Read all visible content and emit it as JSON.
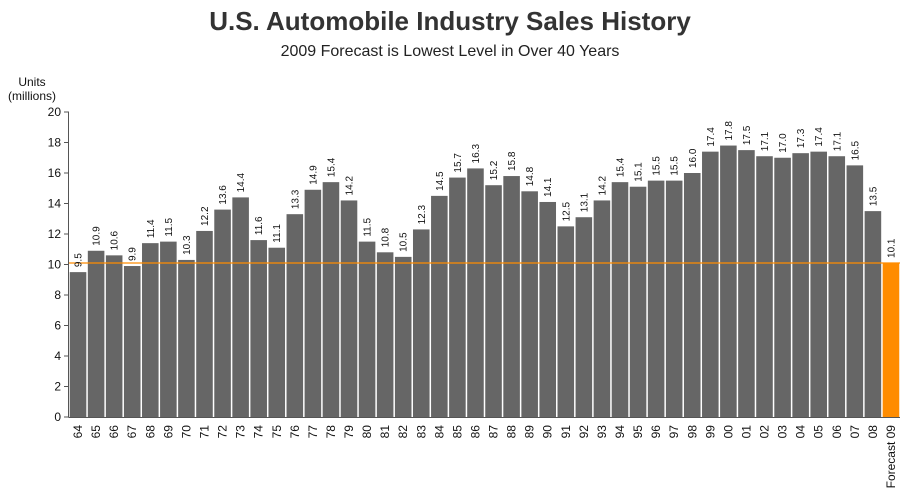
{
  "chart_data": {
    "type": "bar",
    "title": "U.S. Automobile Industry Sales History",
    "subtitle": "2009 Forecast is Lowest Level in Over 40 Years",
    "ylabel_line1": "Units",
    "ylabel_line2": "(millions)",
    "xlabel": "",
    "ylim": [
      0,
      20
    ],
    "yticks": [
      0,
      2,
      4,
      6,
      8,
      10,
      12,
      14,
      16,
      18,
      20
    ],
    "grid": false,
    "legend": "none",
    "reference_line": 10.1,
    "categories": [
      "64",
      "65",
      "66",
      "67",
      "68",
      "69",
      "70",
      "71",
      "72",
      "73",
      "74",
      "75",
      "76",
      "77",
      "78",
      "79",
      "80",
      "81",
      "82",
      "83",
      "84",
      "85",
      "86",
      "87",
      "88",
      "89",
      "90",
      "91",
      "92",
      "93",
      "94",
      "95",
      "96",
      "97",
      "98",
      "99",
      "00",
      "01",
      "02",
      "03",
      "04",
      "05",
      "06",
      "07",
      "08",
      "Forecast 09"
    ],
    "values": [
      9.5,
      10.9,
      10.6,
      9.9,
      11.4,
      11.5,
      10.3,
      12.2,
      13.6,
      14.4,
      11.6,
      11.1,
      13.3,
      14.9,
      15.4,
      14.2,
      11.5,
      10.8,
      10.5,
      12.3,
      14.5,
      15.7,
      16.3,
      15.2,
      15.8,
      14.8,
      14.1,
      12.5,
      13.1,
      14.2,
      15.4,
      15.1,
      15.5,
      15.5,
      16.0,
      17.4,
      17.8,
      17.5,
      17.1,
      17.0,
      17.3,
      17.4,
      17.1,
      16.5,
      13.5,
      10.1
    ],
    "data_labels": [
      "9.5",
      "10.9",
      "10.6",
      "9.9",
      "11.4",
      "11.5",
      "10.3",
      "12.2",
      "13.6",
      "14.4",
      "11.6",
      "11.1",
      "13.3",
      "14.9",
      "15.4",
      "14.2",
      "11.5",
      "10.8",
      "10.5",
      "12.3",
      "14.5",
      "15.7",
      "16.3",
      "15.2",
      "15.8",
      "14.8",
      "14.1",
      "12.5",
      "13.1",
      "14.2",
      "15.4",
      "15.1",
      "15.5",
      "15.5",
      "16.0",
      "17.4",
      "17.8",
      "17.5",
      "17.1",
      "17.0",
      "17.3",
      "17.4",
      "17.1",
      "16.5",
      "13.5",
      "10.1"
    ],
    "highlight_index": 45,
    "colors": {
      "bar": "#666666",
      "highlight": "#ff8c00",
      "reference_line": "#ff8c00",
      "axis": "#555555"
    }
  }
}
